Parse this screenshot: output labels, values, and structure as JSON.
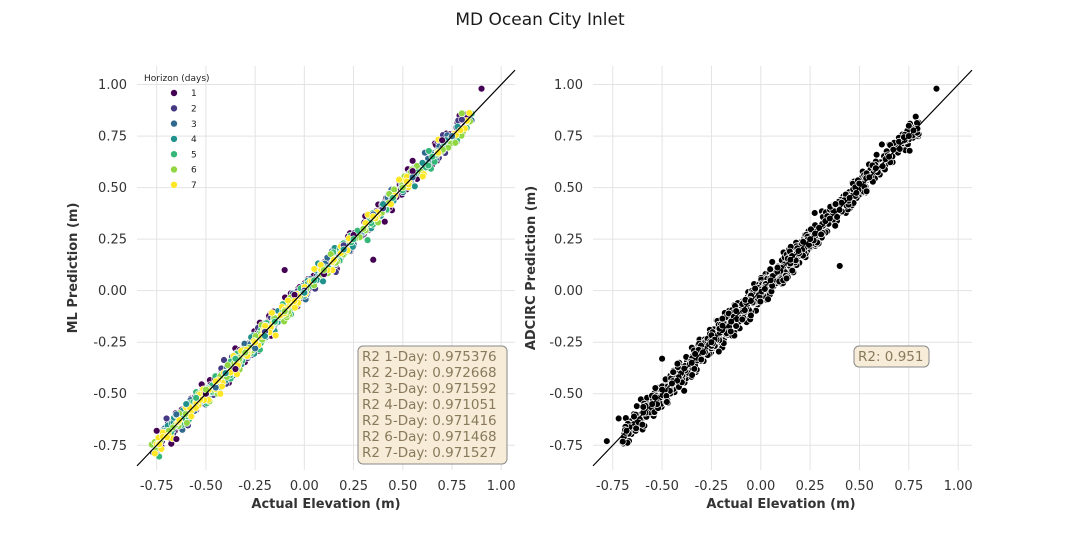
{
  "title": "MD Ocean City Inlet",
  "colors": {
    "h1": "#440154",
    "h2": "#443983",
    "h3": "#31688e",
    "h4": "#21918c",
    "h5": "#35b779",
    "h6": "#90d743",
    "h7": "#fde725",
    "adcirc": "#000000"
  },
  "chart_data": [
    {
      "type": "scatter",
      "xlabel": "Actual Elevation (m)",
      "ylabel": "ML Prediction (m)",
      "xlim": [
        -0.85,
        1.07
      ],
      "ylim": [
        -0.87,
        1.09
      ],
      "xticks": [
        "-0.75",
        "-0.50",
        "-0.25",
        "0.00",
        "0.25",
        "0.50",
        "0.75",
        "1.00"
      ],
      "yticks": [
        "-0.75",
        "-0.50",
        "-0.25",
        "0.00",
        "0.25",
        "0.50",
        "0.75",
        "1.00"
      ],
      "grid": true,
      "legend": {
        "title": "Horizon (days)",
        "placement": "top-left",
        "entries": [
          "1",
          "2",
          "3",
          "4",
          "5",
          "6",
          "7"
        ]
      },
      "series": [
        {
          "name": "1",
          "x": [
            -0.75,
            -0.65,
            -0.5,
            -0.35,
            -0.2,
            -0.05,
            0.1,
            0.25,
            0.4,
            0.55,
            0.7,
            0.9,
            0.35,
            -0.1,
            0.55
          ],
          "y": [
            -0.68,
            -0.72,
            -0.5,
            -0.38,
            -0.2,
            -0.02,
            0.08,
            0.27,
            0.42,
            0.58,
            0.73,
            0.98,
            0.15,
            0.1,
            0.63
          ]
        },
        {
          "name": "2",
          "x": [
            -0.7,
            -0.55,
            -0.4,
            -0.2,
            0.0,
            0.2,
            0.4,
            0.6,
            0.8
          ],
          "y": [
            -0.62,
            -0.52,
            -0.4,
            -0.2,
            0.0,
            0.22,
            0.4,
            0.62,
            0.83
          ]
        },
        {
          "name": "3",
          "x": [
            -0.65,
            -0.45,
            -0.25,
            -0.05,
            0.15,
            0.35,
            0.55,
            0.75
          ],
          "y": [
            -0.6,
            -0.47,
            -0.28,
            -0.05,
            0.15,
            0.37,
            0.55,
            0.75
          ]
        },
        {
          "name": "4",
          "x": [
            -0.6,
            -0.4,
            -0.2,
            0.0,
            0.2,
            0.4,
            0.6
          ],
          "y": [
            -0.55,
            -0.4,
            -0.22,
            -0.01,
            0.2,
            0.42,
            0.62
          ]
        },
        {
          "name": "5",
          "x": [
            -0.55,
            -0.35,
            -0.15,
            0.05,
            0.25,
            0.45,
            0.65
          ],
          "y": [
            -0.52,
            -0.33,
            -0.15,
            0.05,
            0.25,
            0.45,
            0.65
          ]
        },
        {
          "name": "6",
          "x": [
            -0.5,
            -0.3,
            -0.1,
            0.1,
            0.3,
            0.5,
            0.8
          ],
          "y": [
            -0.48,
            -0.3,
            -0.1,
            0.1,
            0.3,
            0.5,
            0.86
          ]
        },
        {
          "name": "7",
          "x": [
            -0.45,
            -0.25,
            -0.05,
            0.15,
            0.35,
            0.52
          ],
          "y": [
            -0.44,
            -0.25,
            -0.05,
            0.15,
            0.36,
            0.53
          ]
        }
      ],
      "reference_line": "y = x",
      "annotation": {
        "placement": "bottom-right",
        "lines": [
          "R2 1-Day: 0.975376",
          "R2 2-Day: 0.972668",
          "R2 3-Day: 0.971592",
          "R2 4-Day: 0.971051",
          "R2 5-Day: 0.971416",
          "R2 6-Day: 0.971468",
          "R2 7-Day: 0.971527"
        ]
      }
    },
    {
      "type": "scatter",
      "xlabel": "Actual Elevation (m)",
      "ylabel": "ADCIRC Prediction (m)",
      "xlim": [
        -0.85,
        1.07
      ],
      "ylim": [
        -0.87,
        1.09
      ],
      "xticks": [
        "-0.75",
        "-0.50",
        "-0.25",
        "0.00",
        "0.25",
        "0.50",
        "0.75",
        "1.00"
      ],
      "yticks": [
        "-0.75",
        "-0.50",
        "-0.25",
        "0.00",
        "0.25",
        "0.50",
        "0.75",
        "1.00"
      ],
      "grid": true,
      "series": [
        {
          "x": [
            -0.78,
            -0.72,
            -0.68,
            -0.6,
            -0.55,
            -0.5,
            -0.45,
            -0.35,
            -0.25,
            -0.15,
            -0.05,
            0.05,
            0.15,
            0.25,
            0.35,
            0.45,
            0.55,
            0.65,
            0.75,
            0.89,
            0.75,
            0.4,
            -0.05,
            -0.5
          ],
          "y": [
            -0.73,
            -0.62,
            -0.68,
            -0.65,
            -0.55,
            -0.48,
            -0.45,
            -0.35,
            -0.25,
            -0.15,
            -0.05,
            0.05,
            0.15,
            0.25,
            0.35,
            0.45,
            0.55,
            0.65,
            0.75,
            0.98,
            0.8,
            0.12,
            -0.12,
            -0.33
          ]
        }
      ],
      "reference_line": "y = x",
      "annotation": {
        "placement": "bottom-right",
        "lines": [
          "R2: 0.951"
        ]
      }
    }
  ]
}
